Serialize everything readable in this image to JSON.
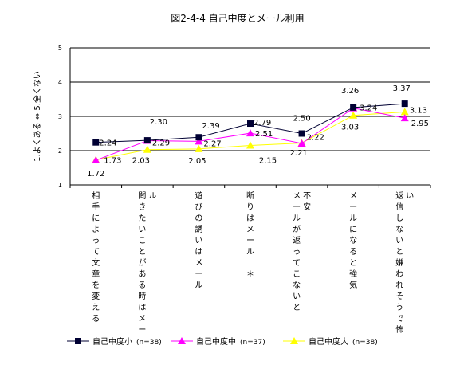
{
  "chart_data": {
    "type": "line",
    "title": "図2-4-4  自己中度とメール利用",
    "ylabel": "1.よくある  ⇔  5.全くない",
    "ylim": [
      1,
      5
    ],
    "yticks": [
      "1",
      "2",
      "3",
      "4",
      "5"
    ],
    "grid": true,
    "legend_position": "bottom",
    "categories": [
      "相手によって文章を変える",
      "聞きたいことがある時はメール",
      "遊びの誘いはメール",
      "断りはメール　＊",
      "メールが返ってこないと不安",
      "メールになると強気",
      "返信しないと嫌われそうで怖い"
    ],
    "category_columns": [
      [
        "相手によって文章を変える"
      ],
      [
        "聞きたいことがある時はメー",
        "ル"
      ],
      [
        "遊びの誘いはメール"
      ],
      [
        "断りはメール　＊"
      ],
      [
        "メールが返ってこないと",
        "不安"
      ],
      [
        "メールになると強気"
      ],
      [
        "返信しないと嫌われそうで怖",
        "い"
      ]
    ],
    "series": [
      {
        "name": "自己中度小",
        "n_label": "(n=38)",
        "color": "#000033",
        "marker": "square",
        "values": [
          2.24,
          2.3,
          2.39,
          2.79,
          2.5,
          3.26,
          3.37
        ]
      },
      {
        "name": "自己中度中",
        "n_label": "(n=37)",
        "color": "#ff00ff",
        "marker": "triangle",
        "values": [
          1.72,
          2.29,
          2.27,
          2.51,
          2.21,
          3.24,
          2.95
        ]
      },
      {
        "name": "自己中度大",
        "n_label": "(n=38)",
        "color": "#ffff00",
        "marker": "triangle",
        "values": [
          1.73,
          2.03,
          2.05,
          2.15,
          2.22,
          3.03,
          3.13
        ]
      }
    ]
  }
}
